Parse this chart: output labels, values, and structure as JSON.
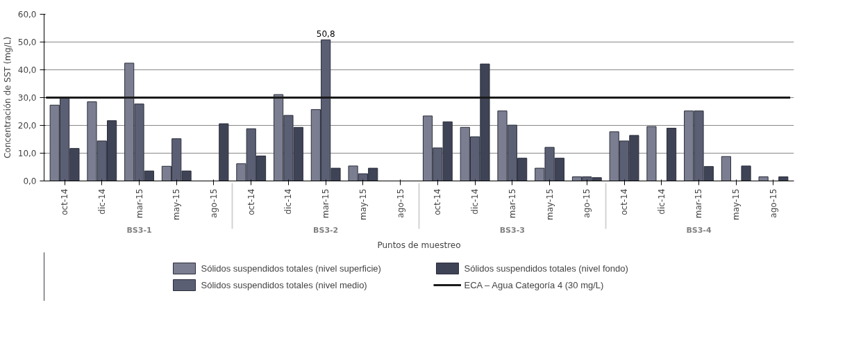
{
  "chart_data": {
    "type": "bar",
    "xlabel": "Puntos de muestreo",
    "ylabel": "Concentración de SST (mg/L)",
    "categories": [
      "oct-14",
      "dic-14",
      "mar-15",
      "may-15",
      "ago-15",
      "oct-14",
      "dic-14",
      "mar-15",
      "may-15",
      "ago-15",
      "oct-14",
      "dic-14",
      "mar-15",
      "may-15",
      "ago-15",
      "oct-14",
      "dic-14",
      "mar-15",
      "may-15",
      "ago-15"
    ],
    "annotations": [
      "BS3-1",
      "BS3-2",
      "BS3-3",
      "BS3-4"
    ],
    "series": [
      {
        "name": "Sólidos suspendidos totales (nivel superficie)",
        "color": "#7b7e90",
        "values": [
          27.3,
          28.5,
          42.4,
          5.3,
          null,
          6.2,
          31.1,
          25.7,
          5.4,
          null,
          23.4,
          19.3,
          25.2,
          4.6,
          1.5,
          17.7,
          19.6,
          25.2,
          8.8,
          1.5
        ]
      },
      {
        "name": "Sólidos suspendidos totales (nivel medio)",
        "color": "#5b5f74",
        "values": [
          30.2,
          14.4,
          27.7,
          15.2,
          null,
          18.8,
          23.6,
          50.8,
          2.6,
          null,
          11.9,
          15.9,
          20.1,
          12.1,
          1.5,
          14.4,
          null,
          25.2,
          null,
          null
        ],
        "value_labels": [
          null,
          null,
          null,
          null,
          null,
          null,
          null,
          "50,8",
          null,
          null,
          null,
          null,
          null,
          null,
          null,
          null,
          null,
          null,
          null,
          null
        ]
      },
      {
        "name": "Sólidos suspendidos totales (nivel fondo)",
        "color": "#3f4356",
        "values": [
          11.7,
          21.7,
          3.6,
          3.6,
          20.6,
          9.0,
          19.3,
          4.6,
          4.6,
          null,
          21.3,
          42.1,
          8.2,
          8.2,
          1.2,
          16.4,
          19.0,
          5.2,
          5.4,
          1.5
        ]
      }
    ],
    "ref_lines": [
      {
        "axis": "y",
        "value": 30,
        "label": "ECA – Agua Categoría 4 (30 mg/L)",
        "color": "#1a1a1a"
      }
    ],
    "ylim": [
      0,
      60
    ],
    "yticks": [
      {
        "value": 0,
        "label": "0,0"
      },
      {
        "value": 10,
        "label": "10,0"
      },
      {
        "value": 20,
        "label": "20,0"
      },
      {
        "value": 30,
        "label": "30,0"
      },
      {
        "value": 40,
        "label": "40,0"
      },
      {
        "value": 50,
        "label": "50,0"
      },
      {
        "value": 60,
        "label": "60,0"
      }
    ],
    "grid": "y",
    "legend": "bottom"
  }
}
